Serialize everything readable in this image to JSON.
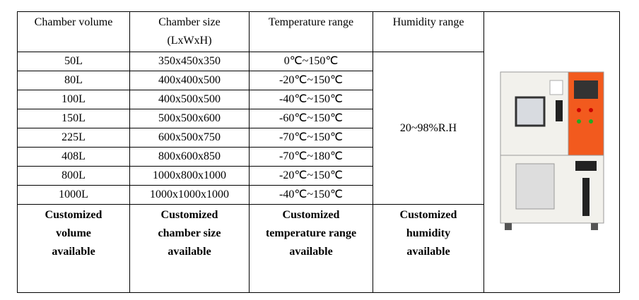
{
  "table": {
    "header": [
      "Chamber volume",
      "Chamber size (LxWxH)",
      "Temperature range",
      "Humidity range"
    ],
    "rows": [
      [
        "50L",
        "350x450x350",
        "0℃~150℃"
      ],
      [
        "80L",
        "400x400x500",
        "-20℃~150℃"
      ],
      [
        "100L",
        "400x500x500",
        "-40℃~150℃"
      ],
      [
        "150L",
        "500x500x600",
        "-60℃~150℃"
      ],
      [
        "225L",
        "600x500x750",
        "-70℃~150℃"
      ],
      [
        "408L",
        "800x600x850",
        "-70℃~180℃"
      ],
      [
        "800L",
        "1000x800x1000",
        "-20℃~150℃"
      ],
      [
        "1000L",
        "1000x1000x1000",
        "-40℃~150℃"
      ]
    ],
    "humidity": "20~98%R.H",
    "footer": [
      "Customized volume available",
      "Customized chamber size available",
      "Customized temperature range available",
      "Customized humidity available"
    ]
  }
}
